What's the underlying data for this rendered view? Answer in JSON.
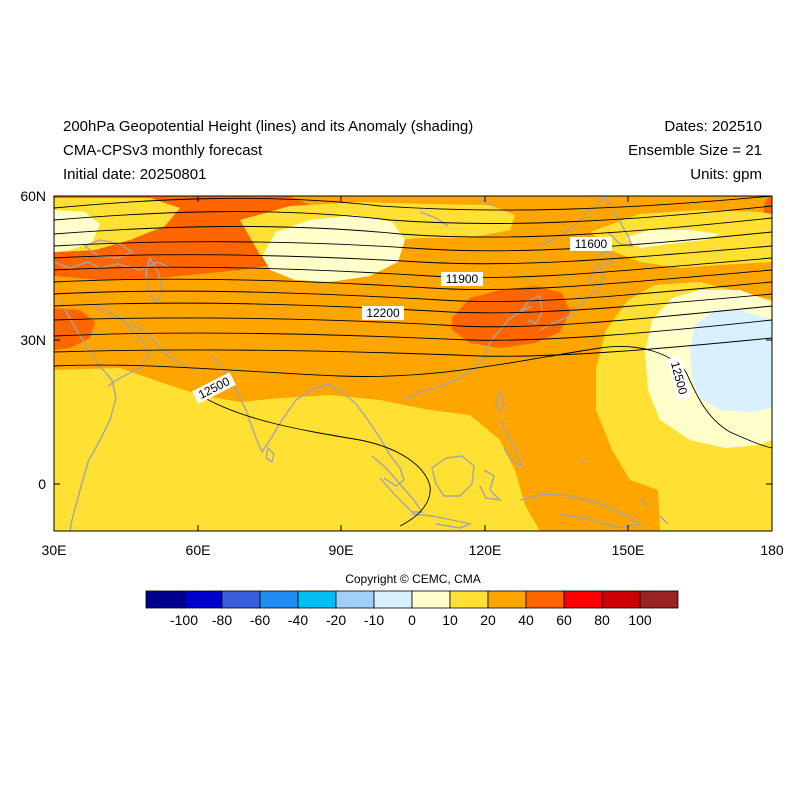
{
  "header": {
    "title": "200hPa Geopotential Height (lines) and its Anomaly (shading)",
    "subtitle": "CMA-CPSv3 monthly forecast",
    "initial": "Initial date: 20250801",
    "dates": "Dates: 202510",
    "ensemble": "Ensemble Size = 21",
    "units": "Units: gpm"
  },
  "axes": {
    "lon_ticks": [
      "30E",
      "60E",
      "90E",
      "120E",
      "150E",
      "180"
    ],
    "lat_ticks": [
      "60N",
      "30N",
      "0"
    ]
  },
  "contour_labels": [
    "11600",
    "11900",
    "12200",
    "12500",
    "12500"
  ],
  "copyright": "Copyright © CEMC, CMA",
  "colorbar": {
    "labels": [
      "-100",
      "-80",
      "-60",
      "-40",
      "-20",
      "-10",
      "0",
      "10",
      "20",
      "40",
      "60",
      "80",
      "100"
    ],
    "colors": [
      "#00008f",
      "#0000cd",
      "#3a5fdc",
      "#1e8cf0",
      "#00bff0",
      "#9fd0f8",
      "#d8f0ff",
      "#ffffcc",
      "#ffe033",
      "#ffa500",
      "#ff6600",
      "#ff0000",
      "#cc0000",
      "#992222"
    ]
  },
  "shading_colors": {
    "c10": "#ffffcc",
    "c20": "#ffe033",
    "c40": "#ffa500",
    "c60": "#ff6600",
    "cm10": "#d8f0ff"
  }
}
